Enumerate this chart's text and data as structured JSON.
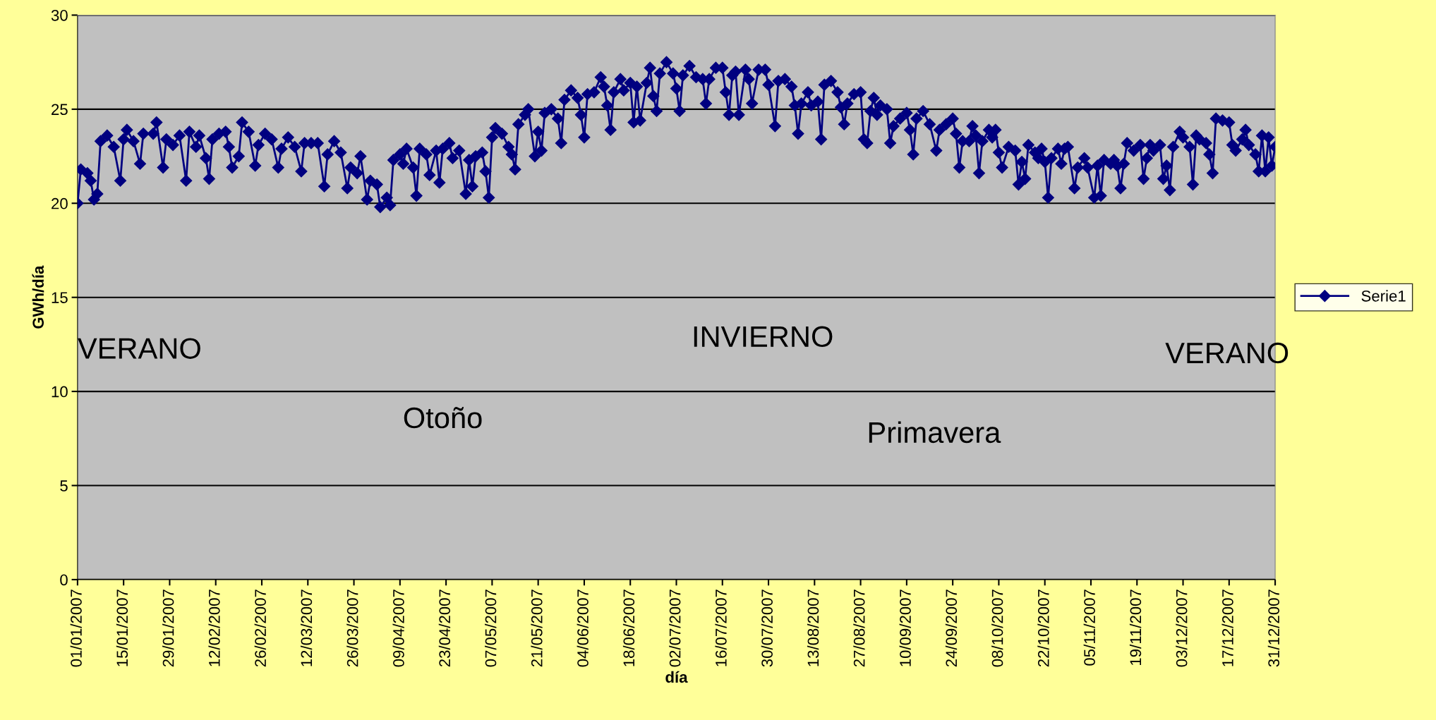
{
  "chart_data": {
    "type": "line",
    "xlabel": "día",
    "ylabel": "GWh/día",
    "x": [
      "2007-01-01",
      "2007-01-02",
      "2007-01-04",
      "2007-01-05",
      "2007-01-06",
      "2007-01-07",
      "2007-01-08",
      "2007-01-10",
      "2007-01-12",
      "2007-01-14",
      "2007-01-15",
      "2007-01-16",
      "2007-01-18",
      "2007-01-20",
      "2007-01-21",
      "2007-01-24",
      "2007-01-25",
      "2007-01-27",
      "2007-01-28",
      "2007-01-30",
      "2007-02-01",
      "2007-02-03",
      "2007-02-04",
      "2007-02-06",
      "2007-02-07",
      "2007-02-09",
      "2007-02-10",
      "2007-02-11",
      "2007-02-13",
      "2007-02-15",
      "2007-02-16",
      "2007-02-17",
      "2007-02-19",
      "2007-02-20",
      "2007-02-22",
      "2007-02-24",
      "2007-02-25",
      "2007-02-27",
      "2007-03-01",
      "2007-03-03",
      "2007-03-04",
      "2007-03-06",
      "2007-03-08",
      "2007-03-10",
      "2007-03-11",
      "2007-03-13",
      "2007-03-15",
      "2007-03-17",
      "2007-03-18",
      "2007-03-20",
      "2007-03-22",
      "2007-03-24",
      "2007-03-25",
      "2007-03-27",
      "2007-03-28",
      "2007-03-30",
      "2007-03-31",
      "2007-04-02",
      "2007-04-03",
      "2007-04-05",
      "2007-04-06",
      "2007-04-07",
      "2007-04-09",
      "2007-04-10",
      "2007-04-11",
      "2007-04-13",
      "2007-04-14",
      "2007-04-15",
      "2007-04-17",
      "2007-04-18",
      "2007-04-20",
      "2007-04-21",
      "2007-04-22",
      "2007-04-24",
      "2007-04-25",
      "2007-04-27",
      "2007-04-29",
      "2007-04-30",
      "2007-05-01",
      "2007-05-02",
      "2007-05-04",
      "2007-05-05",
      "2007-05-06",
      "2007-05-07",
      "2007-05-08",
      "2007-05-10",
      "2007-05-12",
      "2007-05-13",
      "2007-05-14",
      "2007-05-15",
      "2007-05-17",
      "2007-05-18",
      "2007-05-20",
      "2007-05-21",
      "2007-05-22",
      "2007-05-23",
      "2007-05-25",
      "2007-05-27",
      "2007-05-28",
      "2007-05-29",
      "2007-05-31",
      "2007-06-02",
      "2007-06-03",
      "2007-06-04",
      "2007-06-05",
      "2007-06-07",
      "2007-06-09",
      "2007-06-10",
      "2007-06-11",
      "2007-06-12",
      "2007-06-13",
      "2007-06-15",
      "2007-06-16",
      "2007-06-18",
      "2007-06-19",
      "2007-06-20",
      "2007-06-21",
      "2007-06-23",
      "2007-06-24",
      "2007-06-25",
      "2007-06-26",
      "2007-06-27",
      "2007-06-29",
      "2007-07-01",
      "2007-07-02",
      "2007-07-03",
      "2007-07-04",
      "2007-07-06",
      "2007-07-08",
      "2007-07-10",
      "2007-07-11",
      "2007-07-12",
      "2007-07-14",
      "2007-07-16",
      "2007-07-17",
      "2007-07-18",
      "2007-07-19",
      "2007-07-20",
      "2007-07-21",
      "2007-07-23",
      "2007-07-24",
      "2007-07-25",
      "2007-07-27",
      "2007-07-29",
      "2007-07-30",
      "2007-08-01",
      "2007-08-02",
      "2007-08-04",
      "2007-08-06",
      "2007-08-07",
      "2007-08-08",
      "2007-08-09",
      "2007-08-11",
      "2007-08-12",
      "2007-08-14",
      "2007-08-15",
      "2007-08-16",
      "2007-08-18",
      "2007-08-20",
      "2007-08-21",
      "2007-08-22",
      "2007-08-23",
      "2007-08-25",
      "2007-08-27",
      "2007-08-28",
      "2007-08-29",
      "2007-08-30",
      "2007-08-31",
      "2007-09-01",
      "2007-09-02",
      "2007-09-04",
      "2007-09-05",
      "2007-09-06",
      "2007-09-08",
      "2007-09-10",
      "2007-09-11",
      "2007-09-12",
      "2007-09-13",
      "2007-09-15",
      "2007-09-17",
      "2007-09-19",
      "2007-09-20",
      "2007-09-22",
      "2007-09-24",
      "2007-09-25",
      "2007-09-26",
      "2007-09-27",
      "2007-09-29",
      "2007-09-30",
      "2007-10-01",
      "2007-10-02",
      "2007-10-03",
      "2007-10-05",
      "2007-10-06",
      "2007-10-07",
      "2007-10-08",
      "2007-10-09",
      "2007-10-11",
      "2007-10-13",
      "2007-10-14",
      "2007-10-15",
      "2007-10-16",
      "2007-10-17",
      "2007-10-19",
      "2007-10-20",
      "2007-10-21",
      "2007-10-22",
      "2007-10-23",
      "2007-10-24",
      "2007-10-26",
      "2007-10-27",
      "2007-10-28",
      "2007-10-29",
      "2007-10-31",
      "2007-11-01",
      "2007-11-03",
      "2007-11-04",
      "2007-11-06",
      "2007-11-07",
      "2007-11-08",
      "2007-11-09",
      "2007-11-11",
      "2007-11-12",
      "2007-11-13",
      "2007-11-14",
      "2007-11-15",
      "2007-11-16",
      "2007-11-18",
      "2007-11-20",
      "2007-11-21",
      "2007-11-22",
      "2007-11-23",
      "2007-11-24",
      "2007-11-26",
      "2007-11-27",
      "2007-11-28",
      "2007-11-29",
      "2007-11-30",
      "2007-12-02",
      "2007-12-03",
      "2007-12-05",
      "2007-12-06",
      "2007-12-07",
      "2007-12-08",
      "2007-12-10",
      "2007-12-11",
      "2007-12-12",
      "2007-12-13",
      "2007-12-15",
      "2007-12-17",
      "2007-12-18",
      "2007-12-19",
      "2007-12-21",
      "2007-12-22",
      "2007-12-23",
      "2007-12-25",
      "2007-12-26",
      "2007-12-27",
      "2007-12-28",
      "2007-12-29",
      "2007-12-30",
      "2007-12-31"
    ],
    "series": [
      {
        "name": "Serie1",
        "color": "#000080",
        "values": [
          20.0,
          21.8,
          21.6,
          21.2,
          20.2,
          20.5,
          23.3,
          23.6,
          23.0,
          21.2,
          23.4,
          23.9,
          23.3,
          22.1,
          23.7,
          23.7,
          24.3,
          21.9,
          23.4,
          23.1,
          23.6,
          21.2,
          23.8,
          23.0,
          23.6,
          22.4,
          21.3,
          23.4,
          23.7,
          23.8,
          23.0,
          21.9,
          22.5,
          24.3,
          23.8,
          22.0,
          23.1,
          23.7,
          23.4,
          21.9,
          22.9,
          23.5,
          23.0,
          21.7,
          23.2,
          23.2,
          23.2,
          20.9,
          22.6,
          23.3,
          22.7,
          20.8,
          21.9,
          21.6,
          22.5,
          20.2,
          21.2,
          21.0,
          19.8,
          20.3,
          19.9,
          22.3,
          22.6,
          22.1,
          22.9,
          21.9,
          20.4,
          22.9,
          22.6,
          21.5,
          22.8,
          21.1,
          22.9,
          23.2,
          22.4,
          22.8,
          20.5,
          22.3,
          20.9,
          22.5,
          22.7,
          21.7,
          20.3,
          23.5,
          24.0,
          23.7,
          23.0,
          22.6,
          21.8,
          24.2,
          24.7,
          25.0,
          22.5,
          23.8,
          22.8,
          24.8,
          25.0,
          24.5,
          23.2,
          25.5,
          26.0,
          25.6,
          24.7,
          23.5,
          25.8,
          25.9,
          26.7,
          26.2,
          25.2,
          23.9,
          25.9,
          26.6,
          26.0,
          26.4,
          24.3,
          26.2,
          24.4,
          26.4,
          27.2,
          25.7,
          24.9,
          26.9,
          27.5,
          26.9,
          26.1,
          24.9,
          26.8,
          27.3,
          26.7,
          26.6,
          25.3,
          26.6,
          27.2,
          27.2,
          25.9,
          24.7,
          26.8,
          27.0,
          24.7,
          27.1,
          26.6,
          25.3,
          27.1,
          27.1,
          26.3,
          24.1,
          26.5,
          26.6,
          26.2,
          25.2,
          23.7,
          25.3,
          25.9,
          25.2,
          25.4,
          23.4,
          26.3,
          26.5,
          25.9,
          25.1,
          24.2,
          25.3,
          25.8,
          25.9,
          23.4,
          23.2,
          24.9,
          25.6,
          24.7,
          25.2,
          25.0,
          23.2,
          24.1,
          24.5,
          24.8,
          23.9,
          22.6,
          24.5,
          24.9,
          24.2,
          22.8,
          23.9,
          24.2,
          24.5,
          23.7,
          21.9,
          23.3,
          23.3,
          24.1,
          23.6,
          21.6,
          23.3,
          23.9,
          23.5,
          23.9,
          22.7,
          21.9,
          23.0,
          22.8,
          21.0,
          22.2,
          21.3,
          23.1,
          22.7,
          22.4,
          22.9,
          22.2,
          20.3,
          22.4,
          22.9,
          22.1,
          22.9,
          23.0,
          20.8,
          21.9,
          22.4,
          21.9,
          20.3,
          22.0,
          20.4,
          22.3,
          22.1,
          22.3,
          22.0,
          20.8,
          22.1,
          23.2,
          22.8,
          23.1,
          21.3,
          22.4,
          23.1,
          22.8,
          23.1,
          21.3,
          22.0,
          20.7,
          23.0,
          23.8,
          23.5,
          23.0,
          21.0,
          23.6,
          23.4,
          23.2,
          22.6,
          21.6,
          24.5,
          24.4,
          24.3,
          23.1,
          22.8,
          23.4,
          23.9,
          23.1,
          22.6,
          21.7,
          23.6,
          21.7,
          23.5,
          22.0,
          23.0
        ]
      }
    ],
    "xlim": [
      "2007-01-01",
      "2007-12-31"
    ],
    "xticks": [
      {
        "value": "2007-01-01",
        "label": "01/01/2007"
      },
      {
        "value": "2007-01-15",
        "label": "15/01/2007"
      },
      {
        "value": "2007-01-29",
        "label": "29/01/2007"
      },
      {
        "value": "2007-02-12",
        "label": "12/02/2007"
      },
      {
        "value": "2007-02-26",
        "label": "26/02/2007"
      },
      {
        "value": "2007-03-12",
        "label": "12/03/2007"
      },
      {
        "value": "2007-03-26",
        "label": "26/03/2007"
      },
      {
        "value": "2007-04-09",
        "label": "09/04/2007"
      },
      {
        "value": "2007-04-23",
        "label": "23/04/2007"
      },
      {
        "value": "2007-05-07",
        "label": "07/05/2007"
      },
      {
        "value": "2007-05-21",
        "label": "21/05/2007"
      },
      {
        "value": "2007-06-04",
        "label": "04/06/2007"
      },
      {
        "value": "2007-06-18",
        "label": "18/06/2007"
      },
      {
        "value": "2007-07-02",
        "label": "02/07/2007"
      },
      {
        "value": "2007-07-16",
        "label": "16/07/2007"
      },
      {
        "value": "2007-07-30",
        "label": "30/07/2007"
      },
      {
        "value": "2007-08-13",
        "label": "13/08/2007"
      },
      {
        "value": "2007-08-27",
        "label": "27/08/2007"
      },
      {
        "value": "2007-09-10",
        "label": "10/09/2007"
      },
      {
        "value": "2007-09-24",
        "label": "24/09/2007"
      },
      {
        "value": "2007-10-08",
        "label": "08/10/2007"
      },
      {
        "value": "2007-10-22",
        "label": "22/10/2007"
      },
      {
        "value": "2007-11-05",
        "label": "05/11/2007"
      },
      {
        "value": "2007-11-19",
        "label": "19/11/2007"
      },
      {
        "value": "2007-12-03",
        "label": "03/12/2007"
      },
      {
        "value": "2007-12-17",
        "label": "17/12/2007"
      },
      {
        "value": "2007-12-31",
        "label": "31/12/2007"
      }
    ],
    "ylim": [
      0,
      30
    ],
    "yticks": [
      0,
      5,
      10,
      15,
      20,
      25,
      30
    ],
    "grid": "y",
    "legend": "right",
    "marker": "diamond",
    "line_style": "solid",
    "annotations": [
      "VERANO",
      "INVIERNO",
      "VERANO",
      "Otoño",
      "Primavera"
    ]
  }
}
